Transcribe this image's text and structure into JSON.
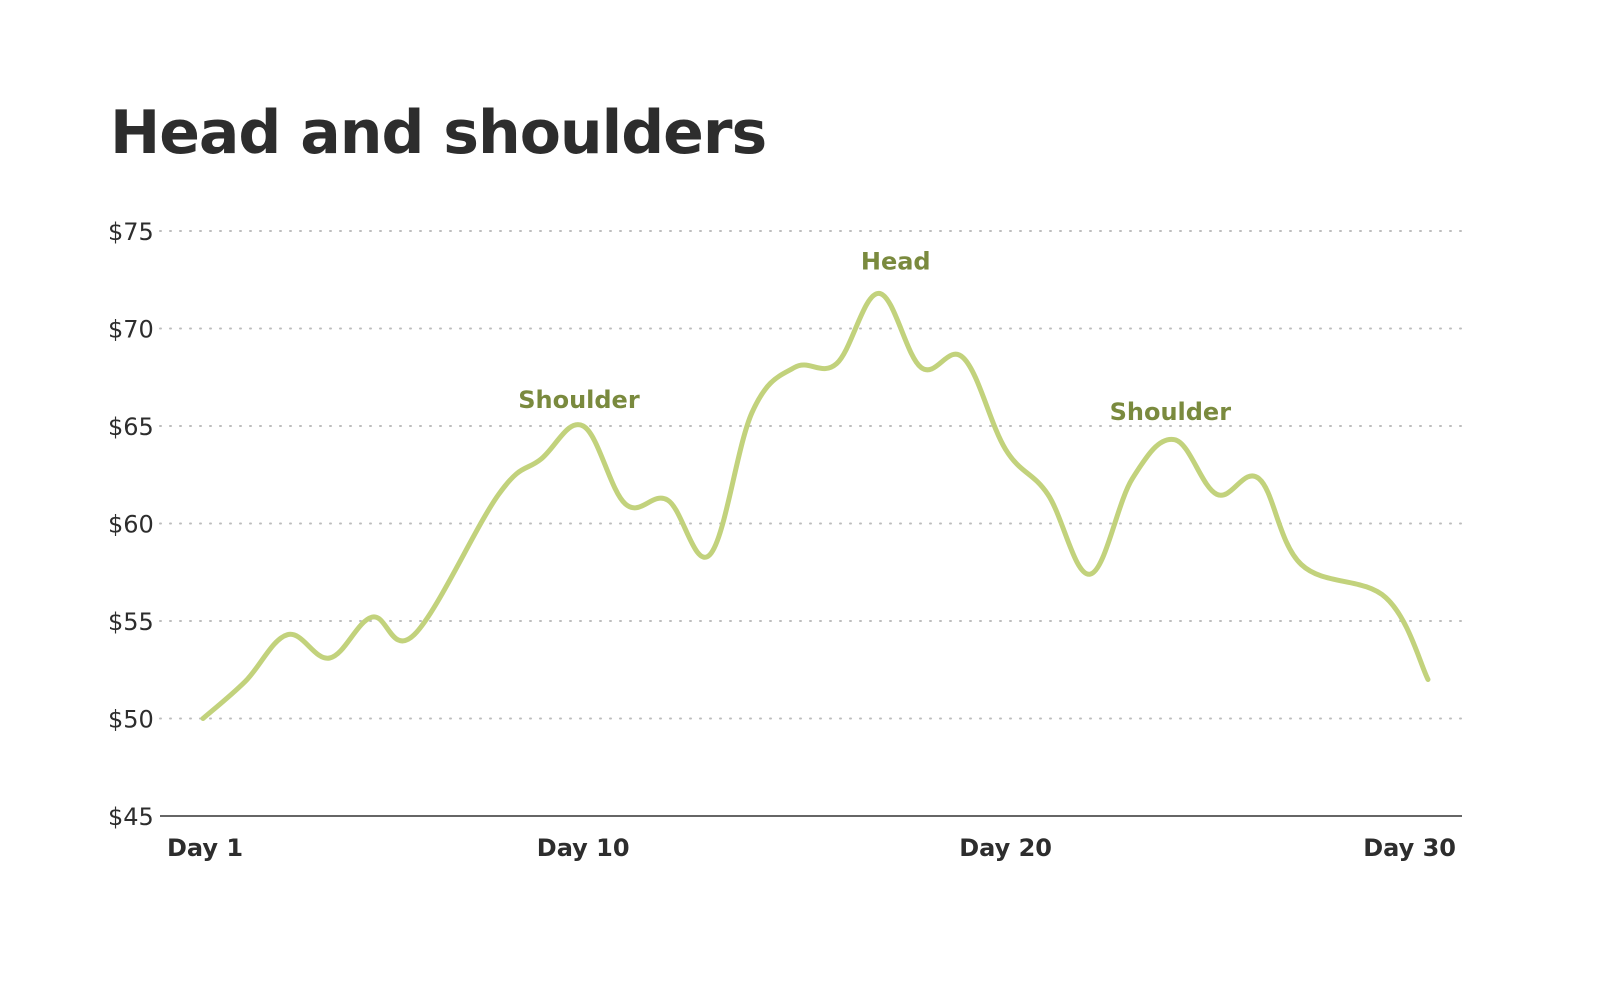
{
  "chart_data": {
    "type": "line",
    "title": "Head and shoulders",
    "xlabel": "",
    "ylabel": "",
    "x": [
      1,
      2,
      3,
      4,
      5,
      6,
      7,
      8,
      9,
      10,
      11,
      12,
      13,
      14,
      15,
      16,
      17,
      18,
      19,
      20,
      21,
      22,
      23,
      24,
      25,
      26,
      27,
      28,
      29,
      30
    ],
    "x_ticks": [
      {
        "x": 1,
        "label": "Day 1"
      },
      {
        "x": 10,
        "label": "Day 10"
      },
      {
        "x": 20,
        "label": "Day 20"
      },
      {
        "x": 30,
        "label": "Day 30"
      }
    ],
    "ylim": [
      45,
      75
    ],
    "y_ticks": [
      {
        "value": 75,
        "label": "$75"
      },
      {
        "value": 70,
        "label": "$70"
      },
      {
        "value": 65,
        "label": "$65"
      },
      {
        "value": 60,
        "label": "$60"
      },
      {
        "value": 55,
        "label": "$55"
      },
      {
        "value": 50,
        "label": "$50"
      },
      {
        "value": 45,
        "label": "$45"
      }
    ],
    "grid": "horizontal-dotted",
    "series": [
      {
        "values": [
          50,
          51.9,
          54.3,
          53.1,
          55.2,
          54.3,
          61.5,
          63.3,
          65.0,
          61.0,
          61.2,
          58.4,
          65.7,
          68.0,
          68.2,
          71.8,
          68.0,
          68.5,
          63.8,
          61.5,
          57.4,
          62.3,
          64.3,
          61.5,
          62.3,
          57.9,
          56.2,
          52.0
        ],
        "x": [
          1,
          2,
          3,
          4,
          5,
          6,
          8,
          9,
          10,
          11,
          12,
          13,
          14,
          15,
          16,
          17,
          18,
          19,
          20,
          21,
          22,
          23,
          24,
          25,
          26,
          27,
          29,
          30
        ],
        "color": "#c2d27c"
      }
    ],
    "annotations": [
      {
        "text": "Shoulder",
        "x": 9.9,
        "y": 65.2
      },
      {
        "text": "Head",
        "x": 17.4,
        "y": 72.3
      },
      {
        "text": "Shoulder",
        "x": 23.9,
        "y": 64.6
      }
    ],
    "annotation_color": "#7a8a3e",
    "axis_color": "#666666",
    "grid_color": "#bdbdbd"
  }
}
